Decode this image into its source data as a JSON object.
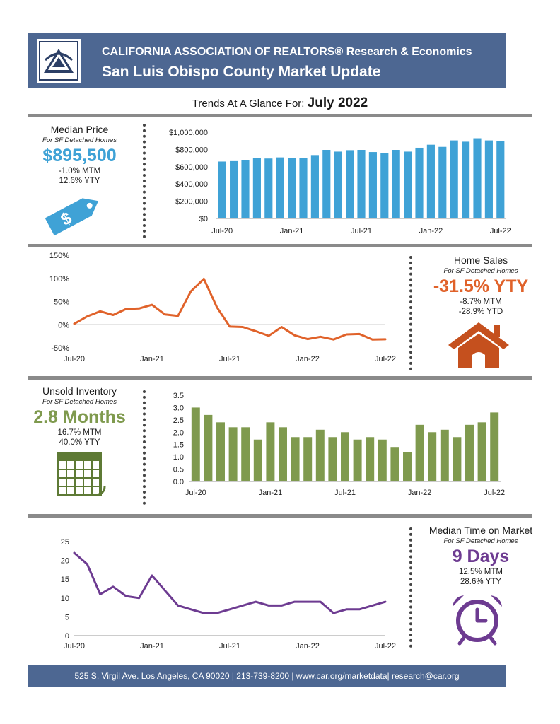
{
  "header": {
    "org": "CALIFORNIA ASSOCIATION OF REALTORS® Research & Economics",
    "title": "San Luis Obispo County Market Update"
  },
  "trends": {
    "prefix": "Trends At A Glance For: ",
    "period": "July 2022"
  },
  "colors": {
    "blue": "#3fa2d6",
    "orange": "#e0622a",
    "green": "#7f9a4e",
    "purple": "#6d3b91",
    "header": "#4d6792"
  },
  "median_price": {
    "title": "Median Price",
    "subtitle": "For SF Detached Homes",
    "value": "$895,500",
    "mtm": "-1.0% MTM",
    "yty": "12.6% YTY",
    "icon": "price-tag-icon"
  },
  "home_sales": {
    "title": "Home Sales",
    "subtitle": "For SF Detached Homes",
    "value": "-31.5% YTY",
    "mtm": "-8.7% MTM",
    "ytd": "-28.9% YTD",
    "icon": "house-icon"
  },
  "unsold_inventory": {
    "title": "Unsold Inventory",
    "subtitle": "For SF Detached Homes",
    "value": "2.8 Months",
    "mtm": "16.7% MTM",
    "yty": "40.0% YTY",
    "icon": "calendar-icon"
  },
  "time_on_market": {
    "title": "Median Time on Market",
    "subtitle": "For SF Detached Homes",
    "value": "9 Days",
    "mtm": "12.5% MTM",
    "yty": "28.6% YTY",
    "icon": "alarm-clock-icon"
  },
  "footer": {
    "text": "525 S. Virgil Ave. Los Angeles, CA 90020 | 213-739-8200 | www.car.org/marketdata| research@car.org"
  },
  "chart_data": [
    {
      "type": "bar",
      "title": "Median Price",
      "categories": [
        "Jul-20",
        "Aug-20",
        "Sep-20",
        "Oct-20",
        "Nov-20",
        "Dec-20",
        "Jan-21",
        "Feb-21",
        "Mar-21",
        "Apr-21",
        "May-21",
        "Jun-21",
        "Jul-21",
        "Aug-21",
        "Sep-21",
        "Oct-21",
        "Nov-21",
        "Dec-21",
        "Jan-22",
        "Feb-22",
        "Mar-22",
        "Apr-22",
        "May-22",
        "Jun-22",
        "Jul-22"
      ],
      "values": [
        660000,
        665000,
        680000,
        698000,
        695000,
        708000,
        698000,
        700000,
        735000,
        795000,
        775000,
        792000,
        795000,
        770000,
        755000,
        795000,
        775000,
        820000,
        855000,
        830000,
        905000,
        890000,
        930000,
        905000,
        895500
      ],
      "x_tick_labels": [
        "Jul-20",
        "Jan-21",
        "Jul-21",
        "Jan-22",
        "Jul-22"
      ],
      "y_tick_labels": [
        "$0",
        "$200,000",
        "$400,000",
        "$600,000",
        "$800,000",
        "$1,000,000"
      ],
      "ylim": [
        0,
        1000000
      ],
      "color": "#3fa2d6"
    },
    {
      "type": "line",
      "title": "Home Sales YTY",
      "categories": [
        "Jul-20",
        "Aug-20",
        "Sep-20",
        "Oct-20",
        "Nov-20",
        "Dec-20",
        "Jan-21",
        "Feb-21",
        "Mar-21",
        "Apr-21",
        "May-21",
        "Jun-21",
        "Jul-21",
        "Aug-21",
        "Sep-21",
        "Oct-21",
        "Nov-21",
        "Dec-21",
        "Jan-22",
        "Feb-22",
        "Mar-22",
        "Apr-22",
        "May-22",
        "Jun-22",
        "Jul-22"
      ],
      "values": [
        2,
        18,
        29,
        21,
        34,
        35,
        43,
        22,
        19,
        72,
        99,
        38,
        -4,
        -5,
        -14,
        -24,
        -5,
        -23,
        -31,
        -26,
        -32,
        -21,
        -20,
        -32,
        -31.5
      ],
      "x_tick_labels": [
        "Jul-20",
        "Jan-21",
        "Jul-21",
        "Jan-22",
        "Jul-22"
      ],
      "y_tick_labels": [
        "-50%",
        "0%",
        "50%",
        "100%",
        "150%"
      ],
      "ylim": [
        -50,
        150
      ],
      "color": "#e0622a"
    },
    {
      "type": "bar",
      "title": "Unsold Inventory",
      "categories": [
        "Jul-20",
        "Aug-20",
        "Sep-20",
        "Oct-20",
        "Nov-20",
        "Dec-20",
        "Jan-21",
        "Feb-21",
        "Mar-21",
        "Apr-21",
        "May-21",
        "Jun-21",
        "Jul-21",
        "Aug-21",
        "Sep-21",
        "Oct-21",
        "Nov-21",
        "Dec-21",
        "Jan-22",
        "Feb-22",
        "Mar-22",
        "Apr-22",
        "May-22",
        "Jun-22",
        "Jul-22"
      ],
      "values": [
        3.0,
        2.7,
        2.4,
        2.2,
        2.2,
        1.7,
        2.4,
        2.2,
        1.8,
        1.8,
        2.1,
        1.8,
        2.0,
        1.7,
        1.8,
        1.7,
        1.4,
        1.2,
        2.3,
        2.0,
        2.1,
        1.8,
        2.3,
        2.4,
        2.8
      ],
      "x_tick_labels": [
        "Jul-20",
        "Jan-21",
        "Jul-21",
        "Jan-22",
        "Jul-22"
      ],
      "y_tick_labels": [
        "0.0",
        "0.5",
        "1.0",
        "1.5",
        "2.0",
        "2.5",
        "3.0",
        "3.5"
      ],
      "ylim": [
        0,
        3.5
      ],
      "color": "#7f9a4e"
    },
    {
      "type": "line",
      "title": "Median Time on Market",
      "categories": [
        "Jul-20",
        "Aug-20",
        "Sep-20",
        "Oct-20",
        "Nov-20",
        "Dec-20",
        "Jan-21",
        "Feb-21",
        "Mar-21",
        "Apr-21",
        "May-21",
        "Jun-21",
        "Jul-21",
        "Aug-21",
        "Sep-21",
        "Oct-21",
        "Nov-21",
        "Dec-21",
        "Jan-22",
        "Feb-22",
        "Mar-22",
        "Apr-22",
        "May-22",
        "Jun-22",
        "Jul-22"
      ],
      "values": [
        22,
        19,
        11,
        13,
        10.5,
        10,
        16,
        12,
        8,
        7,
        6,
        6,
        7,
        8,
        9,
        8,
        8,
        9,
        9,
        9,
        6,
        7,
        7,
        8,
        9
      ],
      "x_tick_labels": [
        "Jul-20",
        "Jan-21",
        "Jul-21",
        "Jan-22",
        "Jul-22"
      ],
      "y_tick_labels": [
        "0",
        "5",
        "10",
        "15",
        "20",
        "25"
      ],
      "ylim": [
        0,
        25
      ],
      "color": "#6d3b91"
    }
  ]
}
